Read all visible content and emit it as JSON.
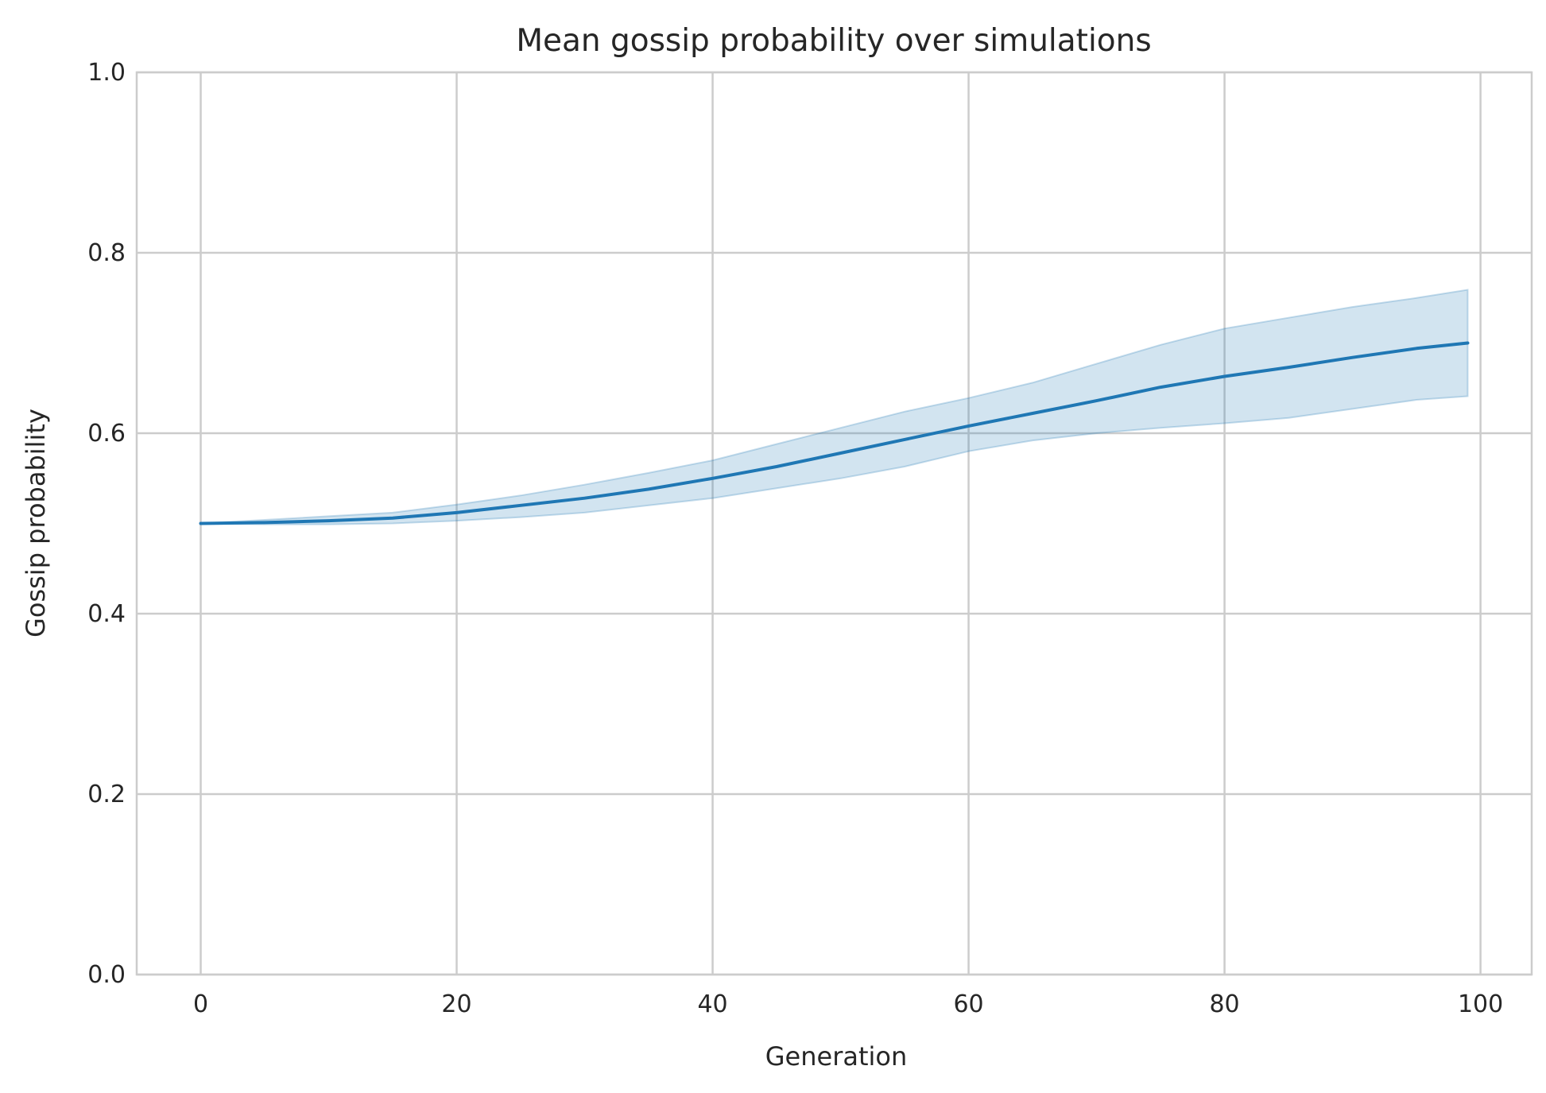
{
  "chart_data": {
    "type": "line",
    "title": "Mean gossip probability over simulations",
    "xlabel": "Generation",
    "ylabel": "Gossip probability",
    "xlim": [
      -5,
      104
    ],
    "ylim": [
      0,
      1.0
    ],
    "xticks": [
      0,
      20,
      40,
      60,
      80,
      100
    ],
    "yticks": [
      0.0,
      0.2,
      0.4,
      0.6,
      0.8,
      1.0
    ],
    "xtick_labels": [
      "0",
      "20",
      "40",
      "60",
      "80",
      "100"
    ],
    "ytick_labels": [
      "0.0",
      "0.2",
      "0.4",
      "0.6",
      "0.8",
      "1.0"
    ],
    "grid": true,
    "colors": {
      "line": "#1f77b4",
      "band": "#1f77b4",
      "grid": "#cccccc",
      "text": "#262626"
    },
    "series": [
      {
        "x": [
          0,
          5,
          10,
          15,
          20,
          25,
          30,
          35,
          40,
          45,
          50,
          55,
          60,
          65,
          70,
          75,
          80,
          85,
          90,
          95,
          99
        ],
        "y": [
          0.5,
          0.501,
          0.503,
          0.506,
          0.512,
          0.52,
          0.528,
          0.538,
          0.55,
          0.563,
          0.578,
          0.593,
          0.608,
          0.622,
          0.636,
          0.651,
          0.663,
          0.673,
          0.684,
          0.694,
          0.7
        ],
        "lower": [
          0.5,
          0.499,
          0.499,
          0.5,
          0.503,
          0.507,
          0.512,
          0.52,
          0.528,
          0.539,
          0.55,
          0.563,
          0.58,
          0.592,
          0.6,
          0.606,
          0.611,
          0.617,
          0.627,
          0.637,
          0.641
        ],
        "upper": [
          0.5,
          0.504,
          0.508,
          0.512,
          0.521,
          0.531,
          0.543,
          0.556,
          0.57,
          0.588,
          0.606,
          0.624,
          0.639,
          0.656,
          0.677,
          0.698,
          0.716,
          0.728,
          0.74,
          0.75,
          0.759
        ]
      }
    ]
  }
}
